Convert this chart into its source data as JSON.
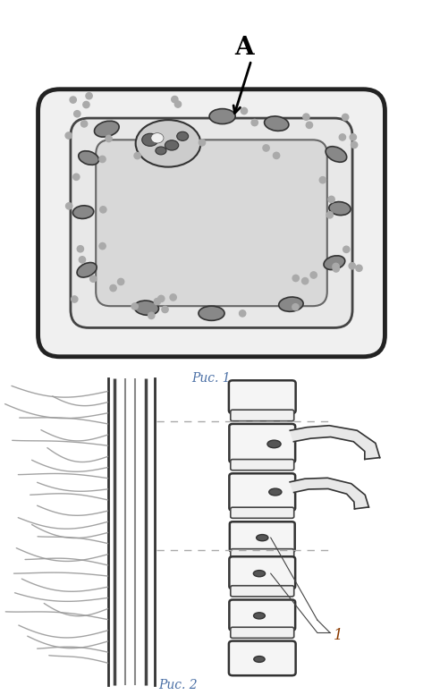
{
  "fig_width": 4.73,
  "fig_height": 7.77,
  "dpi": 100,
  "bg_color": "#ffffff",
  "label_A": "A",
  "label_1": "1",
  "caption1": "Рис. 1",
  "caption2": "Рис. 2",
  "caption_color": "#4a6fa5",
  "caption_fontsize": 10,
  "outer_cell_color": "#d4d4d4",
  "inner_vac_color": "#e0e0e0",
  "organelle_color": "#888888",
  "cell_wall_color": "#222222",
  "root_line_color": "#555555",
  "root_hair_color": "#999999",
  "dashed_color": "#aaaaaa",
  "nucleus_color": "#555555"
}
